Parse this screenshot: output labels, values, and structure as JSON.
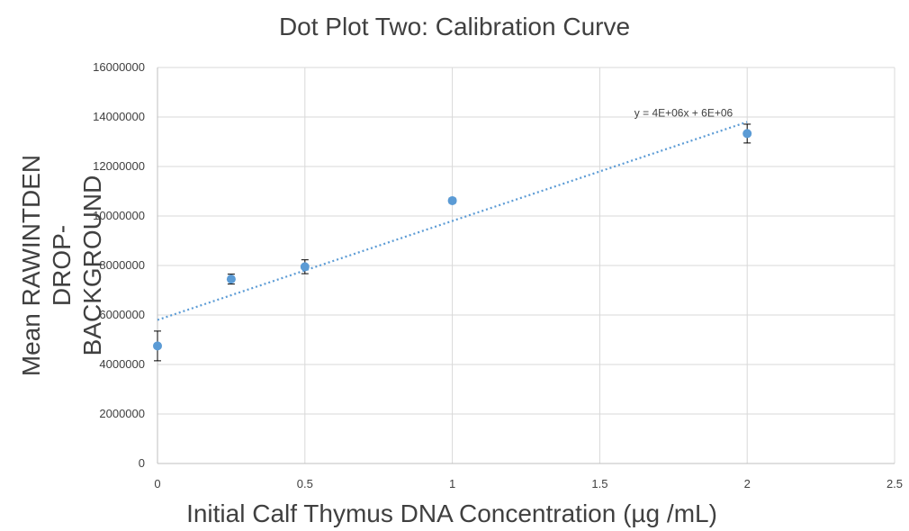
{
  "chart_data": {
    "type": "scatter",
    "title": "Dot Plot Two: Calibration Curve",
    "xlabel": "Initial Calf Thymus DNA  Concentration (µg /mL)",
    "ylabel_lines": [
      "Mean RAWINTDEN DROP-",
      "BACKGROUND"
    ],
    "xlim": [
      0,
      2.5
    ],
    "ylim": [
      0,
      16000000
    ],
    "x_ticks": [
      0,
      0.5,
      1,
      1.5,
      2,
      2.5
    ],
    "x_tick_labels": [
      "0",
      "0.5",
      "1",
      "1.5",
      "2",
      "2.5"
    ],
    "y_ticks": [
      0,
      2000000,
      4000000,
      6000000,
      8000000,
      10000000,
      12000000,
      14000000,
      16000000
    ],
    "y_tick_labels": [
      "0",
      "2000000",
      "4000000",
      "6000000",
      "8000000",
      "10000000",
      "12000000",
      "14000000",
      "16000000"
    ],
    "grid": true,
    "marker_color": "#5b9bd5",
    "errorbar_color": "#000000",
    "points": [
      {
        "x": 0,
        "y": 4750000,
        "err": 600000
      },
      {
        "x": 0.25,
        "y": 7450000,
        "err": 200000
      },
      {
        "x": 0.5,
        "y": 7950000,
        "err": 280000
      },
      {
        "x": 1,
        "y": 10620000,
        "err": 100000
      },
      {
        "x": 2,
        "y": 13330000,
        "err": 380000
      }
    ],
    "trendline": {
      "type": "linear",
      "color": "#5b9bd5",
      "style": "dotted",
      "x_range": [
        0,
        2
      ],
      "intercept": 5800000,
      "slope": 4000000,
      "equation_label": "y = 4E+06x + 6E+06"
    }
  }
}
